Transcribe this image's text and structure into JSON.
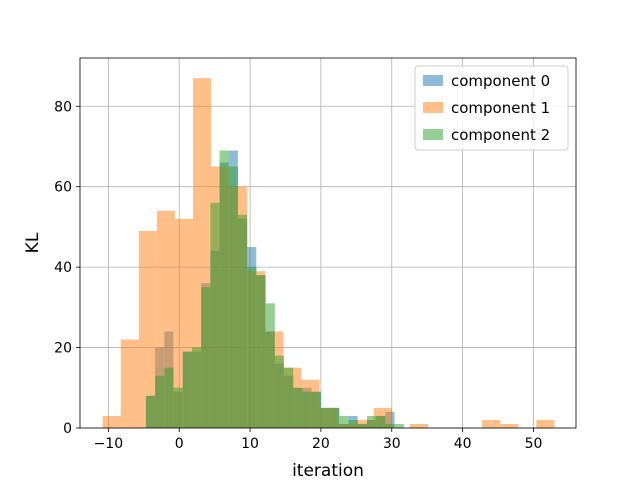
{
  "chart_data": {
    "type": "bar",
    "subtype": "overlaid-histogram",
    "xlabel": "iteration",
    "ylabel": "KL",
    "xlim": [
      -14,
      56
    ],
    "ylim": [
      0,
      92
    ],
    "xticks": [
      -10,
      0,
      10,
      20,
      30,
      40,
      50
    ],
    "yticks": [
      0,
      20,
      40,
      60,
      80
    ],
    "grid": true,
    "legend_position": "top-right",
    "series": [
      {
        "name": "component 0",
        "color": "#1f77b4",
        "opacity": 0.5,
        "bin_width": 1.28,
        "bins": [
          {
            "x0": -6.0,
            "count": 0
          },
          {
            "x0": -4.7,
            "count": 8
          },
          {
            "x0": -3.4,
            "count": 20
          },
          {
            "x0": -2.1,
            "count": 24
          },
          {
            "x0": -0.8,
            "count": 9
          },
          {
            "x0": 0.5,
            "count": 19
          },
          {
            "x0": 1.8,
            "count": 19
          },
          {
            "x0": 3.1,
            "count": 36
          },
          {
            "x0": 4.4,
            "count": 44
          },
          {
            "x0": 5.7,
            "count": 66
          },
          {
            "x0": 7.0,
            "count": 69
          },
          {
            "x0": 8.3,
            "count": 52
          },
          {
            "x0": 9.6,
            "count": 45
          },
          {
            "x0": 10.9,
            "count": 38
          },
          {
            "x0": 12.2,
            "count": 24
          },
          {
            "x0": 13.5,
            "count": 16
          },
          {
            "x0": 14.8,
            "count": 13
          },
          {
            "x0": 16.1,
            "count": 10
          },
          {
            "x0": 17.4,
            "count": 10
          },
          {
            "x0": 18.7,
            "count": 9
          },
          {
            "x0": 20.0,
            "count": 5
          },
          {
            "x0": 21.3,
            "count": 5
          },
          {
            "x0": 22.6,
            "count": 1
          },
          {
            "x0": 23.9,
            "count": 3
          },
          {
            "x0": 25.2,
            "count": 1
          },
          {
            "x0": 26.5,
            "count": 2
          },
          {
            "x0": 27.8,
            "count": 3
          },
          {
            "x0": 29.1,
            "count": 4
          }
        ]
      },
      {
        "name": "component 1",
        "color": "#ff7f0e",
        "opacity": 0.5,
        "bin_width": 2.55,
        "bins": [
          {
            "x0": -10.8,
            "count": 3
          },
          {
            "x0": -8.25,
            "count": 22
          },
          {
            "x0": -5.7,
            "count": 49
          },
          {
            "x0": -3.15,
            "count": 54
          },
          {
            "x0": -0.6,
            "count": 52
          },
          {
            "x0": 1.95,
            "count": 87
          },
          {
            "x0": 4.5,
            "count": 65
          },
          {
            "x0": 7.05,
            "count": 60
          },
          {
            "x0": 9.6,
            "count": 39
          },
          {
            "x0": 12.15,
            "count": 24
          },
          {
            "x0": 14.7,
            "count": 15
          },
          {
            "x0": 17.25,
            "count": 12
          },
          {
            "x0": 19.8,
            "count": 5
          },
          {
            "x0": 22.35,
            "count": 1
          },
          {
            "x0": 24.9,
            "count": 2
          },
          {
            "x0": 27.45,
            "count": 5
          },
          {
            "x0": 30.0,
            "count": 0
          },
          {
            "x0": 32.55,
            "count": 1
          },
          {
            "x0": 35.1,
            "count": 0
          },
          {
            "x0": 37.65,
            "count": 0
          },
          {
            "x0": 40.2,
            "count": 0
          },
          {
            "x0": 42.75,
            "count": 2
          },
          {
            "x0": 45.3,
            "count": 1
          },
          {
            "x0": 47.85,
            "count": 0
          },
          {
            "x0": 50.4,
            "count": 2
          }
        ]
      },
      {
        "name": "component 2",
        "color": "#2ca02c",
        "opacity": 0.5,
        "bin_width": 1.3,
        "bins": [
          {
            "x0": -4.7,
            "count": 8
          },
          {
            "x0": -3.4,
            "count": 13
          },
          {
            "x0": -2.1,
            "count": 15
          },
          {
            "x0": -0.8,
            "count": 10
          },
          {
            "x0": 0.5,
            "count": 19
          },
          {
            "x0": 1.8,
            "count": 20
          },
          {
            "x0": 3.1,
            "count": 35
          },
          {
            "x0": 4.4,
            "count": 56
          },
          {
            "x0": 5.7,
            "count": 69
          },
          {
            "x0": 7.0,
            "count": 65
          },
          {
            "x0": 8.3,
            "count": 53
          },
          {
            "x0": 9.6,
            "count": 40
          },
          {
            "x0": 10.9,
            "count": 38
          },
          {
            "x0": 12.2,
            "count": 31
          },
          {
            "x0": 13.5,
            "count": 18
          },
          {
            "x0": 14.8,
            "count": 15
          },
          {
            "x0": 16.1,
            "count": 10
          },
          {
            "x0": 17.4,
            "count": 9
          },
          {
            "x0": 18.7,
            "count": 9
          },
          {
            "x0": 20.0,
            "count": 5
          },
          {
            "x0": 21.3,
            "count": 5
          },
          {
            "x0": 22.6,
            "count": 3
          },
          {
            "x0": 23.9,
            "count": 2
          },
          {
            "x0": 25.2,
            "count": 1
          },
          {
            "x0": 26.5,
            "count": 3
          },
          {
            "x0": 27.8,
            "count": 3
          },
          {
            "x0": 29.1,
            "count": 1
          },
          {
            "x0": 30.4,
            "count": 1
          }
        ]
      }
    ]
  }
}
